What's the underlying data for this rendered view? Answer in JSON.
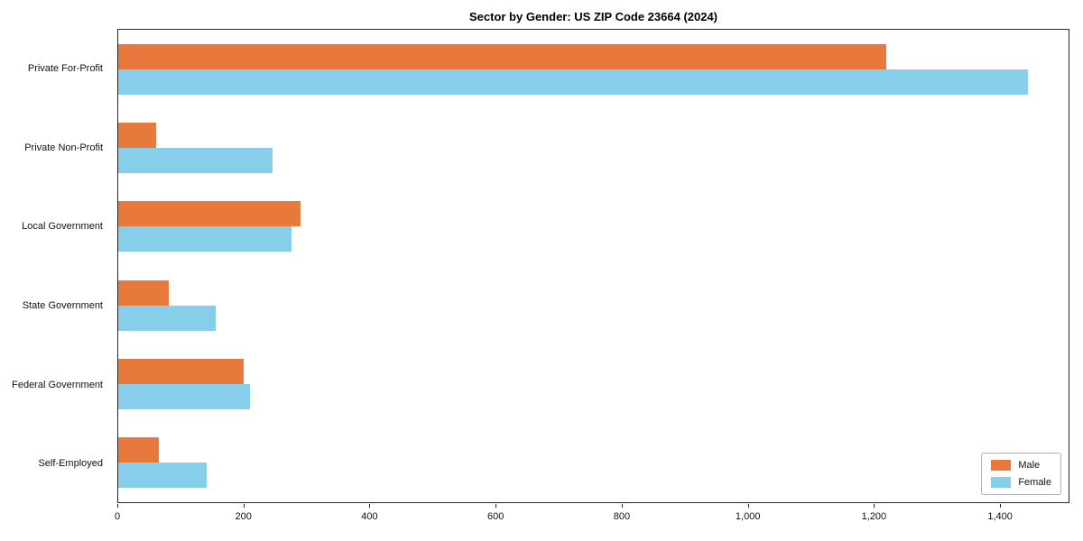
{
  "chart_data": {
    "type": "bar",
    "orientation": "horizontal",
    "title": "Sector by Gender: US ZIP Code 23664 (2024)",
    "categories": [
      "Private For-Profit",
      "Private Non-Profit",
      "Local Government",
      "State Government",
      "Federal Government",
      "Self-Employed"
    ],
    "series": [
      {
        "name": "Male",
        "color": "#e8793d",
        "values": [
          1220,
          60,
          290,
          80,
          200,
          65
        ]
      },
      {
        "name": "Female",
        "color": "#87ceeb",
        "values": [
          1445,
          245,
          275,
          155,
          210,
          140
        ]
      }
    ],
    "xlabel": "",
    "ylabel": "",
    "xlim": [
      0,
      1510
    ],
    "xticks": {
      "values": [
        0,
        200,
        400,
        600,
        800,
        1000,
        1200,
        1400
      ],
      "labels": [
        "0",
        "200",
        "400",
        "600",
        "800",
        "1,000",
        "1,200",
        "1,400"
      ]
    },
    "legend": {
      "position": "lower right"
    },
    "grid": false
  }
}
